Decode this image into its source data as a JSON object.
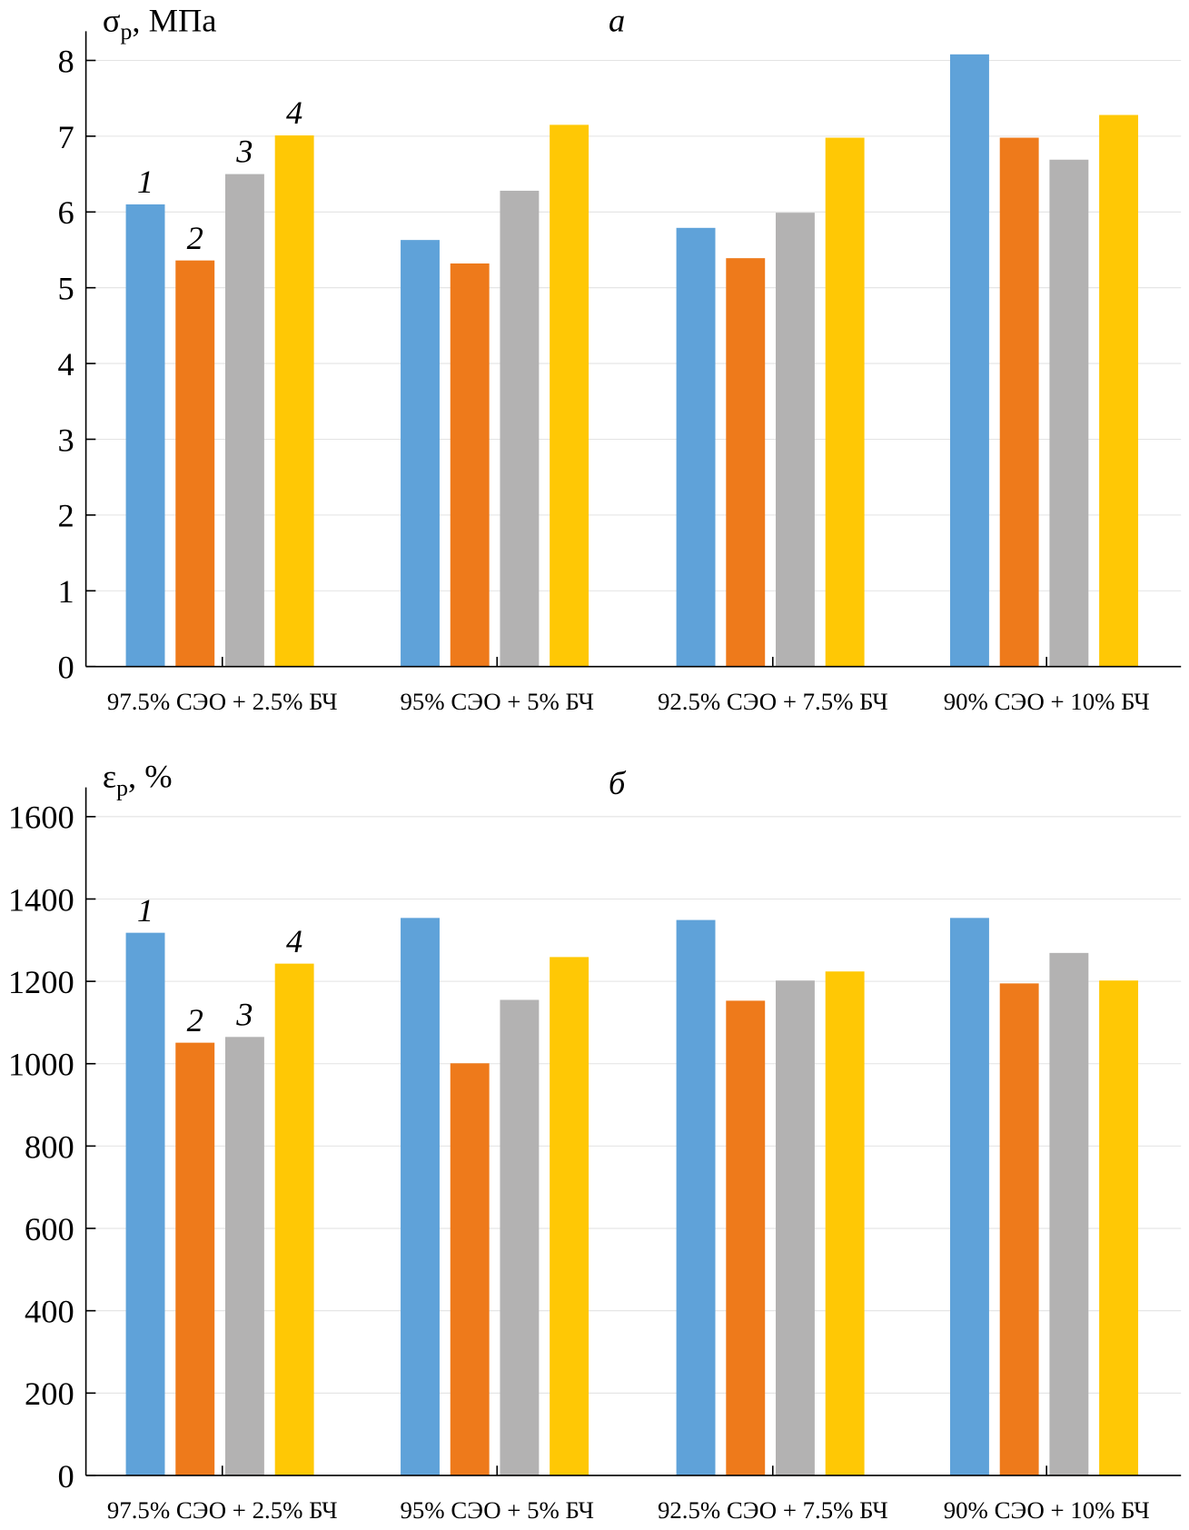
{
  "colors": {
    "series1": "#5fa2d9",
    "series2": "#ee7a1b",
    "series3": "#b3b2b2",
    "series4": "#ffc805",
    "grid": "#e3e3e3",
    "axis": "#000000"
  },
  "chart_data": [
    {
      "type": "bar",
      "panel_label": "а",
      "ylabel_main": "σ",
      "ylabel_sub": "р",
      "ylabel_unit": ", МПа",
      "categories": [
        "97.5% СЭО + 2.5% БЧ",
        "95% СЭО + 5% БЧ",
        "92.5% СЭО + 7.5% БЧ",
        "90% СЭО + 10% БЧ"
      ],
      "series": [
        {
          "name": "1",
          "values": [
            6.1,
            5.63,
            5.79,
            8.08
          ]
        },
        {
          "name": "2",
          "values": [
            5.36,
            5.32,
            5.39,
            6.98
          ]
        },
        {
          "name": "3",
          "values": [
            6.5,
            6.28,
            5.99,
            6.69
          ]
        },
        {
          "name": "4",
          "values": [
            7.01,
            7.15,
            6.98,
            7.28
          ]
        }
      ],
      "ylim": [
        0,
        8
      ],
      "yticks": [
        "0",
        "1",
        "2",
        "3",
        "4",
        "5",
        "6",
        "7",
        "8"
      ],
      "grid": true
    },
    {
      "type": "bar",
      "panel_label": "б",
      "ylabel_main": "ε",
      "ylabel_sub": "р",
      "ylabel_unit": ", %",
      "categories": [
        "97.5% СЭО + 2.5% БЧ",
        "95% СЭО + 5% БЧ",
        "92.5% СЭО + 7.5% БЧ",
        "90% СЭО + 10% БЧ"
      ],
      "series": [
        {
          "name": "1",
          "values": [
            1318,
            1354,
            1349,
            1354
          ]
        },
        {
          "name": "2",
          "values": [
            1051,
            1001,
            1153,
            1195
          ]
        },
        {
          "name": "3",
          "values": [
            1065,
            1155,
            1202,
            1269
          ]
        },
        {
          "name": "4",
          "values": [
            1243,
            1259,
            1224,
            1202
          ]
        }
      ],
      "ylim": [
        0,
        1600
      ],
      "yticks": [
        "0",
        "200",
        "400",
        "600",
        "800",
        "1000",
        "1200",
        "1400",
        "1600"
      ],
      "grid": true
    }
  ]
}
